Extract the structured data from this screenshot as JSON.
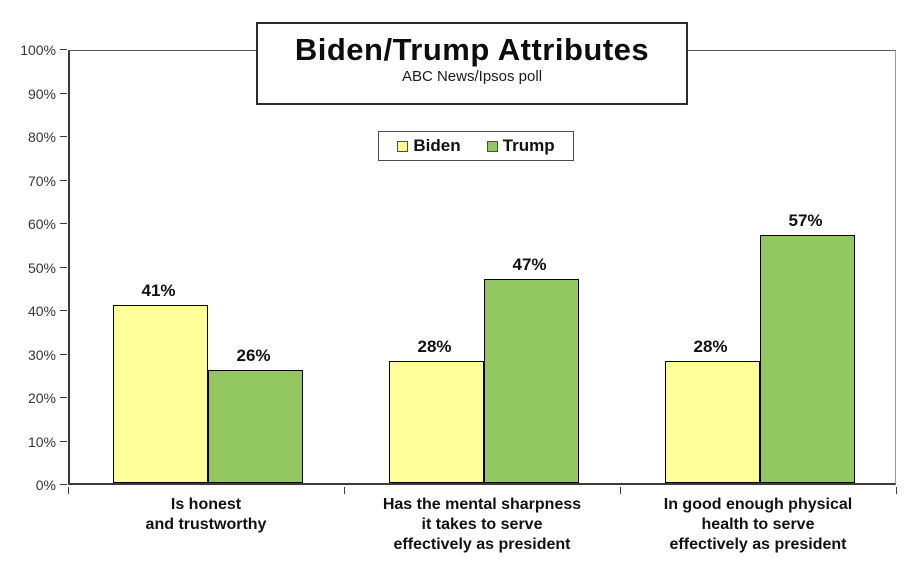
{
  "chart_data": {
    "type": "bar",
    "title": "Biden/Trump Attributes",
    "subtitle": "ABC News/Ipsos poll",
    "categories": [
      [
        "Is honest",
        "and trustworthy"
      ],
      [
        "Has the mental sharpness",
        "it takes to serve",
        "effectively as president"
      ],
      [
        "In good enough physical",
        "health to serve",
        "effectively as president"
      ]
    ],
    "series": [
      {
        "name": "Biden",
        "color": "#FFFF99",
        "values": [
          41,
          28,
          28
        ]
      },
      {
        "name": "Trump",
        "color": "#93C75F",
        "values": [
          26,
          47,
          57
        ]
      }
    ],
    "data_labels": [
      [
        "41%",
        "26%"
      ],
      [
        "28%",
        "47%"
      ],
      [
        "28%",
        "57%"
      ]
    ],
    "value_suffix": "%",
    "ylim": [
      0,
      100
    ],
    "ytick_step": 10,
    "ytick_labels": [
      "0%",
      "10%",
      "20%",
      "30%",
      "40%",
      "50%",
      "60%",
      "70%",
      "80%",
      "90%",
      "100%"
    ],
    "grid": false,
    "legend_position": "top-center",
    "legend_entries": [
      "Biden",
      "Trump"
    ]
  },
  "colors": {
    "background": "#ffffff",
    "bar_border": "#000000",
    "axis": "#3c3c3c",
    "biden": "#FFFF99",
    "trump": "#93C75F",
    "text": "#111111"
  }
}
